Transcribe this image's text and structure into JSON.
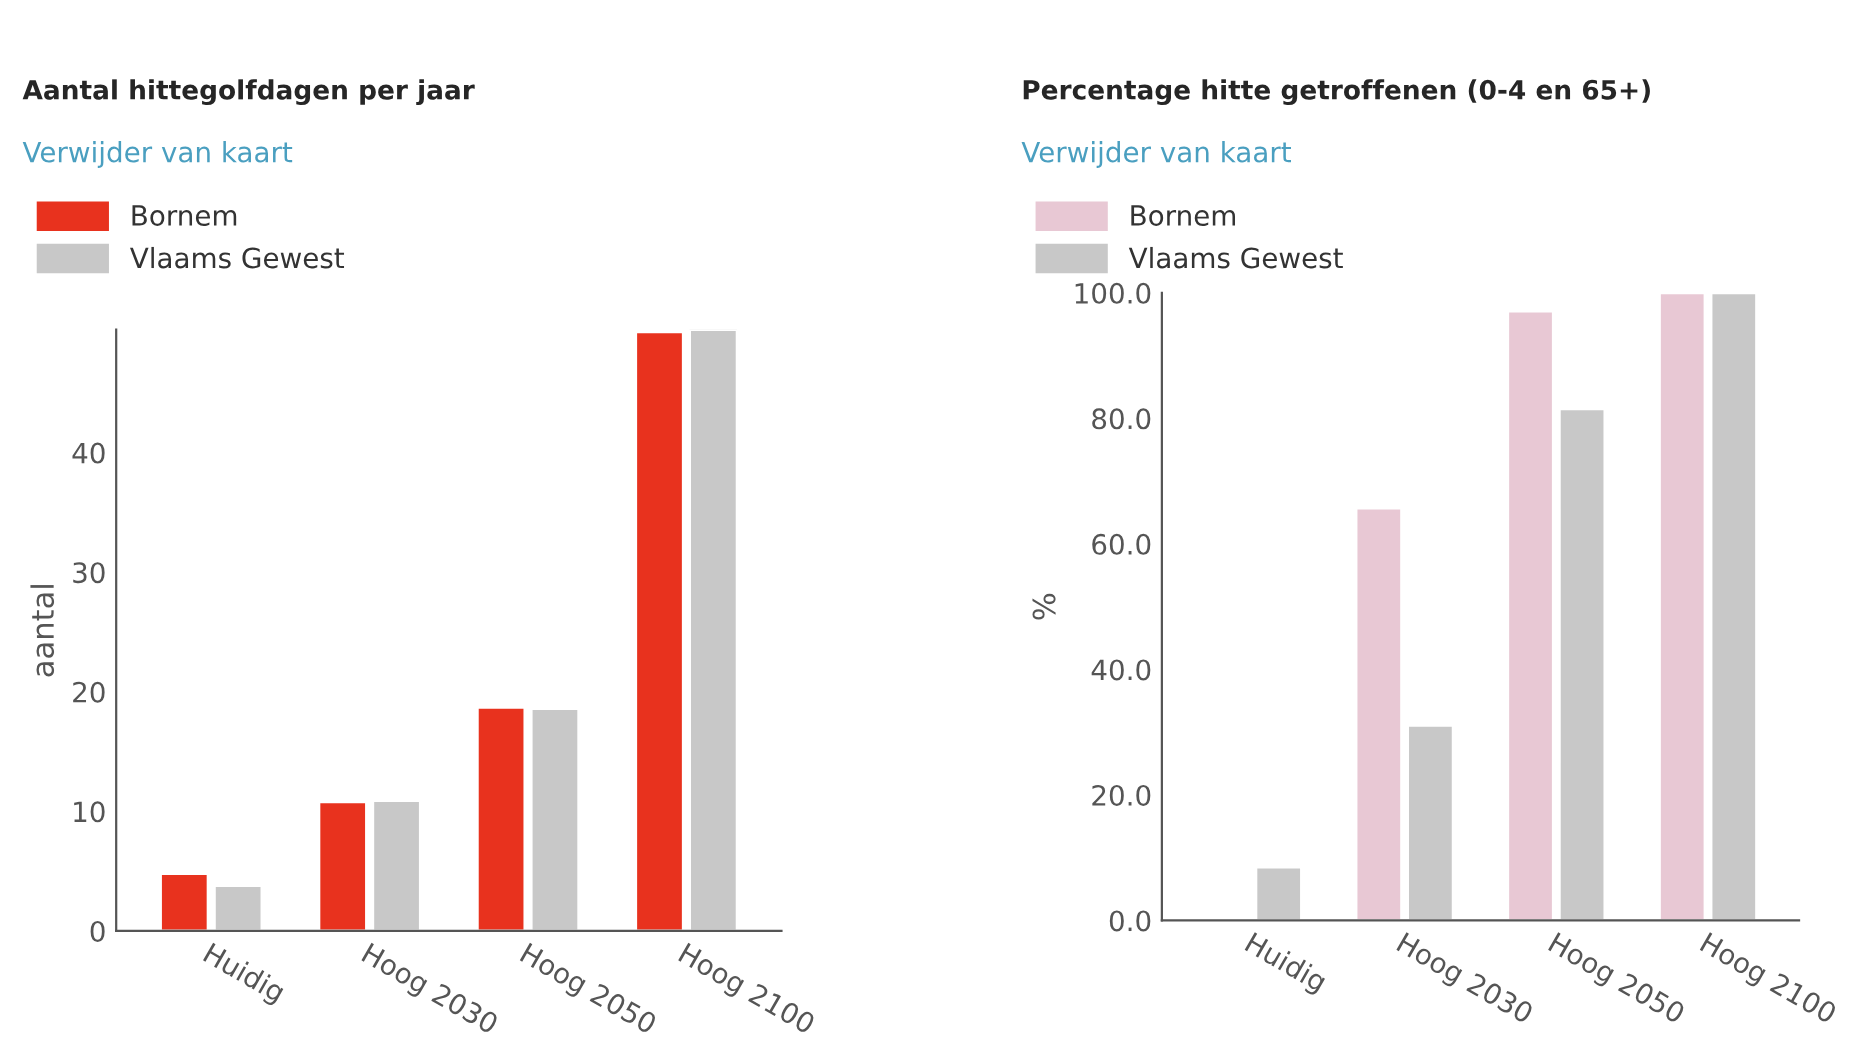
{
  "chart_data": [
    {
      "type": "bar",
      "title": "Aantal hittegolfdagen per jaar",
      "ylabel": "aantal",
      "annotations": [
        "Verwijder van kaart"
      ],
      "categories": [
        "Huidig",
        "Hoog 2030",
        "Hoog 2050",
        "Hoog 2100"
      ],
      "series": [
        {
          "name": "Bornem",
          "color": "#e8321e",
          "values": [
            4.8,
            10.8,
            18.7,
            50.1
          ]
        },
        {
          "name": "Vlaams Gewest",
          "color": "#c8c8c8",
          "values": [
            3.8,
            10.9,
            18.6,
            50.3
          ]
        }
      ],
      "ylim": [
        0,
        50.3
      ],
      "yticks": [
        0,
        10,
        20,
        30,
        40
      ],
      "grid": false,
      "legend": "top left"
    },
    {
      "type": "bar",
      "title": "Percentage hitte getroffenen (0-4 en 65+)",
      "ylabel": "%",
      "annotations": [
        "Verwijder van kaart"
      ],
      "categories": [
        "Huidig",
        "Hoog 2030",
        "Hoog 2050",
        "Hoog 2100"
      ],
      "series": [
        {
          "name": "Bornem",
          "color": "#e8c8d4",
          "values": [
            null,
            65.7,
            97.1,
            100
          ]
        },
        {
          "name": "Vlaams Gewest",
          "color": "#c8c8c8",
          "values": [
            8.5,
            31.1,
            81.5,
            100
          ]
        }
      ],
      "ylim": [
        0,
        100
      ],
      "yticks": [
        {
          "value": 0,
          "label": "0.0"
        },
        {
          "value": 20,
          "label": "20.0"
        },
        {
          "value": 40,
          "label": "40.0"
        },
        {
          "value": 60,
          "label": "60.0"
        },
        {
          "value": 80,
          "label": "80.0"
        },
        {
          "value": 100,
          "label": "100.0"
        }
      ],
      "grid": false,
      "legend": "top left"
    }
  ]
}
